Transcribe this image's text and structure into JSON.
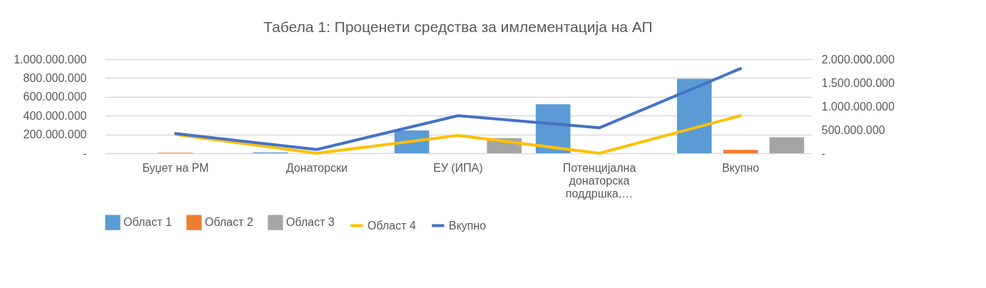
{
  "chart_data": {
    "type": "bar",
    "title": "Табела 1: Проценети средства за имлементација на АП",
    "categories": [
      "Буџет на РМ",
      "Донаторски",
      "ЕУ (ИПА)",
      "Потенцијална донаторска поддршка,…",
      "Вкупно"
    ],
    "series": [
      {
        "name": "Област 1",
        "color": "#5b9bd5",
        "values": [
          null,
          10000000,
          242000000,
          521000000,
          792000000
        ]
      },
      {
        "name": "Област 2",
        "color": "#ed7d31",
        "values": [
          5000000,
          null,
          null,
          null,
          36000000
        ]
      },
      {
        "name": "Област 3",
        "color": "#a5a5a5",
        "values": [
          null,
          null,
          161000000,
          null,
          171000000
        ]
      },
      {
        "name": "Област 4",
        "type": "line",
        "axis": "y2",
        "color": "#ffc000",
        "values": [
          400000000,
          0,
          380000000,
          0,
          800000000
        ]
      },
      {
        "name": "Вкупно",
        "type": "line",
        "axis": "y2",
        "color": "#4472c4",
        "values": [
          420000000,
          80000000,
          800000000,
          540000000,
          1800000000
        ]
      }
    ],
    "ylim": [
      0,
      1000000000
    ],
    "yticks": [
      {
        "value": 0,
        "label": "-"
      },
      {
        "value": 200000000,
        "label": "200.000.000"
      },
      {
        "value": 400000000,
        "label": "400.000.000"
      },
      {
        "value": 600000000,
        "label": "600.000.000"
      },
      {
        "value": 800000000,
        "label": "800.000.000"
      },
      {
        "value": 1000000000,
        "label": "1.000.000.000"
      }
    ],
    "y2lim": [
      0,
      2000000000
    ],
    "y2ticks": [
      {
        "value": 0,
        "label": "-"
      },
      {
        "value": 500000000,
        "label": "500.000.000"
      },
      {
        "value": 1000000000,
        "label": "1.000.000.000"
      },
      {
        "value": 1500000000,
        "label": "1.500.000.000"
      },
      {
        "value": 2000000000,
        "label": "2.000.000.000"
      }
    ],
    "grid": "y",
    "legend": "bottom",
    "marker": "none",
    "line_style": "solid"
  }
}
